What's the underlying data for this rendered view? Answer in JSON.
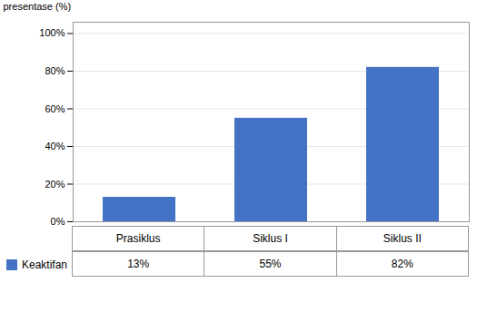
{
  "chart_data": {
    "type": "bar",
    "ylabel": "presentase (%)",
    "categories": [
      "Prasiklus",
      "Siklus I",
      "Siklus II"
    ],
    "series": [
      {
        "name": "Keaktifan",
        "color": "#4472C4",
        "values": [
          13,
          55,
          82
        ],
        "value_labels": [
          "13%",
          "55%",
          "82%"
        ]
      }
    ],
    "ylim": [
      0,
      106
    ],
    "yticks": [
      {
        "value": 0,
        "label": "0%"
      },
      {
        "value": 20,
        "label": "20%"
      },
      {
        "value": 40,
        "label": "40%"
      },
      {
        "value": 60,
        "label": "60%"
      },
      {
        "value": 80,
        "label": "80%"
      },
      {
        "value": 100,
        "label": "100%"
      }
    ],
    "grid": true,
    "legend": "bottom",
    "data_labels": true
  }
}
